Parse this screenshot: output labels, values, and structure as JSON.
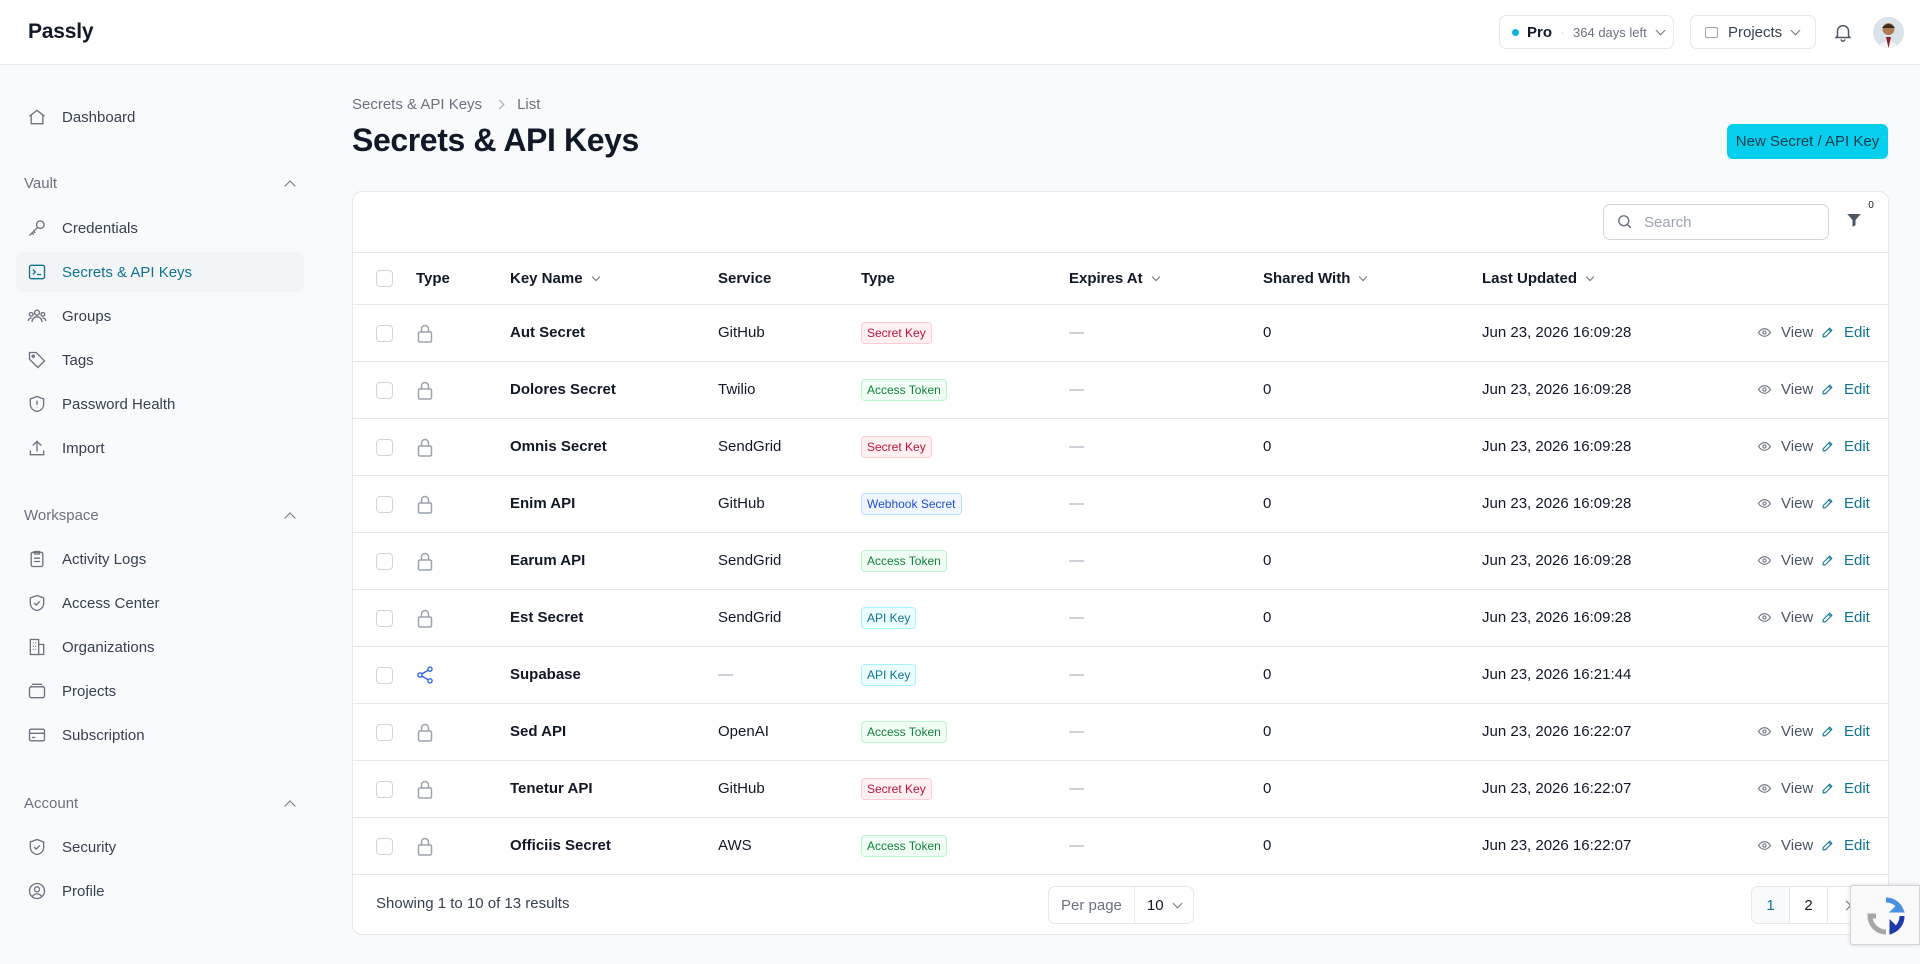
{
  "app": {
    "brand": "Passly"
  },
  "topbar": {
    "plan_name": "Pro",
    "plan_days": "364 days left",
    "projects_label": "Projects"
  },
  "sidebar": {
    "top_items": [
      {
        "label": "Dashboard",
        "icon": "home-icon"
      }
    ],
    "sections": [
      {
        "title": "Vault",
        "items": [
          {
            "label": "Credentials",
            "icon": "key-icon"
          },
          {
            "label": "Secrets & API Keys",
            "icon": "terminal-icon",
            "active": true
          },
          {
            "label": "Groups",
            "icon": "users-icon"
          },
          {
            "label": "Tags",
            "icon": "tag-icon"
          },
          {
            "label": "Password Health",
            "icon": "shield-alert-icon"
          },
          {
            "label": "Import",
            "icon": "upload-icon"
          }
        ]
      },
      {
        "title": "Workspace",
        "items": [
          {
            "label": "Activity Logs",
            "icon": "clipboard-icon"
          },
          {
            "label": "Access Center",
            "icon": "shield-check-icon"
          },
          {
            "label": "Organizations",
            "icon": "building-icon"
          },
          {
            "label": "Projects",
            "icon": "folder-icon"
          },
          {
            "label": "Subscription",
            "icon": "credit-card-icon"
          }
        ]
      },
      {
        "title": "Account",
        "items": [
          {
            "label": "Security",
            "icon": "shield-check-icon"
          },
          {
            "label": "Profile",
            "icon": "user-circle-icon"
          }
        ]
      }
    ]
  },
  "breadcrumb": {
    "parent": "Secrets & API Keys",
    "current": "List"
  },
  "page": {
    "title": "Secrets & API Keys",
    "new_button": "New Secret / API Key"
  },
  "toolbar": {
    "search_placeholder": "Search",
    "filter_count": "0"
  },
  "table": {
    "headers": {
      "type_icon": "Type",
      "key_name": "Key Name",
      "service": "Service",
      "type": "Type",
      "expires_at": "Expires At",
      "shared_with": "Shared With",
      "last_updated": "Last Updated"
    },
    "view_label": "View",
    "edit_label": "Edit",
    "rows": [
      {
        "name": "Aut Secret",
        "service": "GitHub",
        "type": "Secret Key",
        "badge": "red",
        "expires": "—",
        "shared": "0",
        "updated": "Jun 23, 2026 16:09:28",
        "icon": "lock",
        "actions": true
      },
      {
        "name": "Dolores Secret",
        "service": "Twilio",
        "type": "Access Token",
        "badge": "green",
        "expires": "—",
        "shared": "0",
        "updated": "Jun 23, 2026 16:09:28",
        "icon": "lock",
        "actions": true
      },
      {
        "name": "Omnis Secret",
        "service": "SendGrid",
        "type": "Secret Key",
        "badge": "red",
        "expires": "—",
        "shared": "0",
        "updated": "Jun 23, 2026 16:09:28",
        "icon": "lock",
        "actions": true
      },
      {
        "name": "Enim API",
        "service": "GitHub",
        "type": "Webhook Secret",
        "badge": "blue",
        "expires": "—",
        "shared": "0",
        "updated": "Jun 23, 2026 16:09:28",
        "icon": "lock",
        "actions": true
      },
      {
        "name": "Earum API",
        "service": "SendGrid",
        "type": "Access Token",
        "badge": "green",
        "expires": "—",
        "shared": "0",
        "updated": "Jun 23, 2026 16:09:28",
        "icon": "lock",
        "actions": true
      },
      {
        "name": "Est Secret",
        "service": "SendGrid",
        "type": "API Key",
        "badge": "cyan",
        "expires": "—",
        "shared": "0",
        "updated": "Jun 23, 2026 16:09:28",
        "icon": "lock",
        "actions": true
      },
      {
        "name": "Supabase",
        "service": "—",
        "type": "API Key",
        "badge": "cyan",
        "expires": "—",
        "shared": "0",
        "updated": "Jun 23, 2026 16:21:44",
        "icon": "share",
        "actions": false
      },
      {
        "name": "Sed API",
        "service": "OpenAI",
        "type": "Access Token",
        "badge": "green",
        "expires": "—",
        "shared": "0",
        "updated": "Jun 23, 2026 16:22:07",
        "icon": "lock",
        "actions": true
      },
      {
        "name": "Tenetur API",
        "service": "GitHub",
        "type": "Secret Key",
        "badge": "red",
        "expires": "—",
        "shared": "0",
        "updated": "Jun 23, 2026 16:22:07",
        "icon": "lock",
        "actions": true
      },
      {
        "name": "Officiis Secret",
        "service": "AWS",
        "type": "Access Token",
        "badge": "green",
        "expires": "—",
        "shared": "0",
        "updated": "Jun 23, 2026 16:22:07",
        "icon": "lock",
        "actions": true
      }
    ]
  },
  "footer": {
    "showing": "Showing 1 to 10 of 13 results",
    "per_page_label": "Per page",
    "per_page_value": "10",
    "pages": [
      "1",
      "2"
    ],
    "current_page": "1"
  }
}
